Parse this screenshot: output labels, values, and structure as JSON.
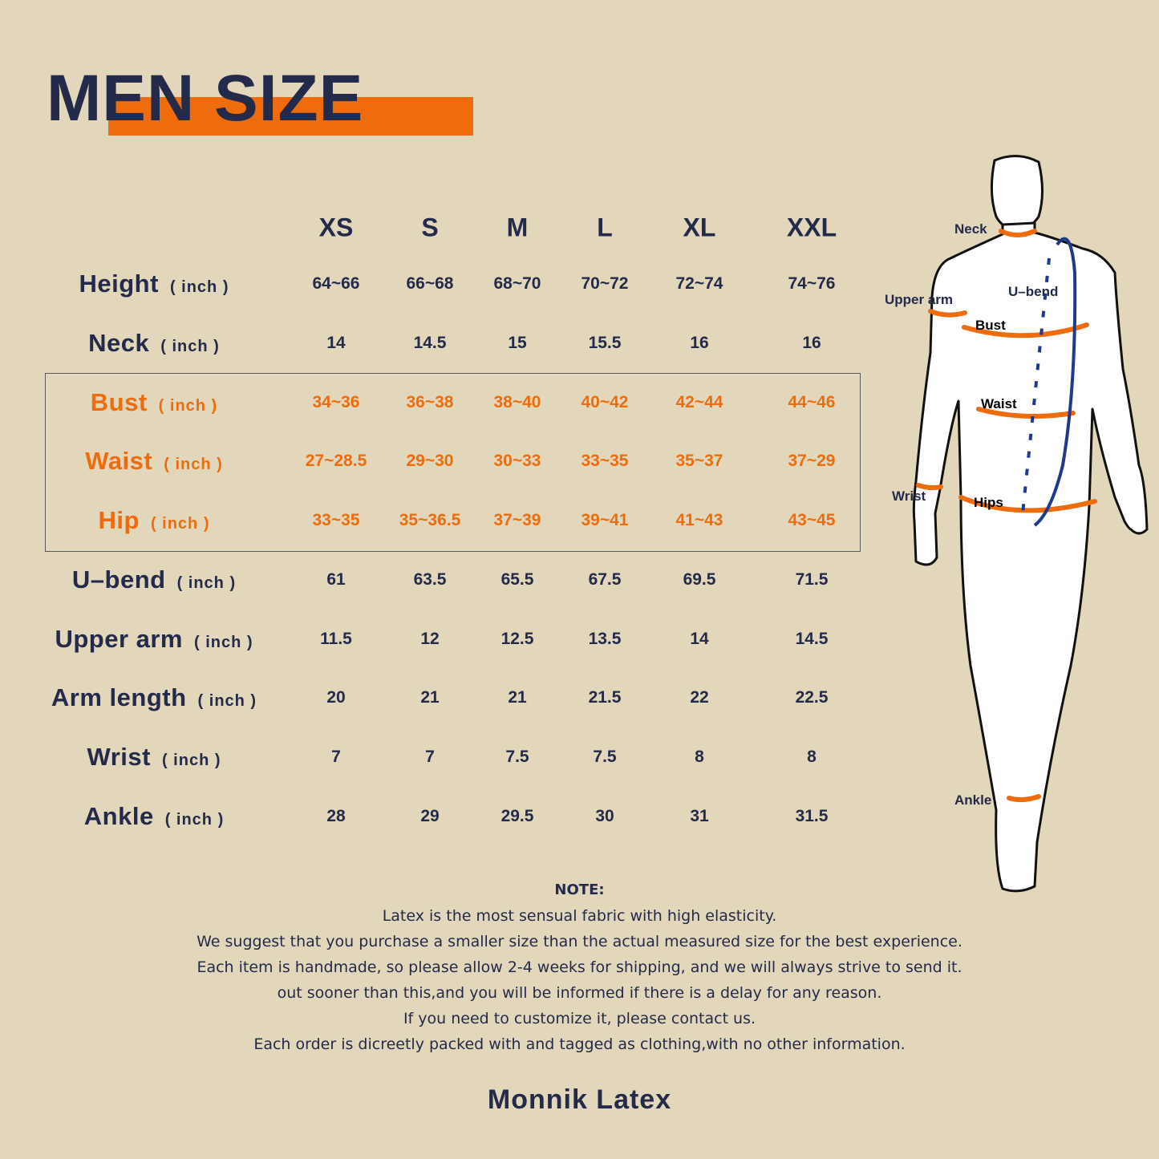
{
  "title": "MEN SIZE",
  "colors": {
    "background": "#e2d6bb",
    "navy": "#232a4a",
    "orange": "#ee6c0b",
    "ubend_blue": "#1f3a8a"
  },
  "table": {
    "sizes": [
      "XS",
      "S",
      "M",
      "L",
      "XL",
      "XXL"
    ],
    "unit": "( inch )",
    "rows": [
      {
        "label": "Height",
        "highlight": false,
        "values": [
          "64~66",
          "66~68",
          "68~70",
          "70~72",
          "72~74",
          "74~76"
        ]
      },
      {
        "label": "Neck",
        "highlight": false,
        "values": [
          "14",
          "14.5",
          "15",
          "15.5",
          "16",
          "16"
        ]
      },
      {
        "label": "Bust",
        "highlight": true,
        "values": [
          "34~36",
          "36~38",
          "38~40",
          "40~42",
          "42~44",
          "44~46"
        ]
      },
      {
        "label": "Waist",
        "highlight": true,
        "values": [
          "27~28.5",
          "29~30",
          "30~33",
          "33~35",
          "35~37",
          "37~29"
        ]
      },
      {
        "label": "Hip",
        "highlight": true,
        "values": [
          "33~35",
          "35~36.5",
          "37~39",
          "39~41",
          "41~43",
          "43~45"
        ]
      },
      {
        "label": "U–bend",
        "highlight": false,
        "values": [
          "61",
          "63.5",
          "65.5",
          "67.5",
          "69.5",
          "71.5"
        ]
      },
      {
        "label": "Upper arm",
        "highlight": false,
        "values": [
          "11.5",
          "12",
          "12.5",
          "13.5",
          "14",
          "14.5"
        ]
      },
      {
        "label": "Arm length",
        "highlight": false,
        "values": [
          "20",
          "21",
          "21",
          "21.5",
          "22",
          "22.5"
        ]
      },
      {
        "label": "Wrist",
        "highlight": false,
        "values": [
          "7",
          "7",
          "7.5",
          "7.5",
          "8",
          "8"
        ]
      },
      {
        "label": "Ankle",
        "highlight": false,
        "values": [
          "28",
          "29",
          "29.5",
          "30",
          "31",
          "31.5"
        ]
      }
    ]
  },
  "figure": {
    "labels": {
      "neck": "Neck",
      "upper_arm": "Upper arm",
      "u_bend": "U–bend",
      "bust": "Bust",
      "waist": "Waist",
      "wrist": "Wrist",
      "hips": "Hips",
      "ankle": "Ankle"
    }
  },
  "note": {
    "title": "NOTE:",
    "lines": [
      "Latex is the most sensual fabric with high elasticity.",
      "We suggest that you purchase a smaller size than the actual measured size for the best experience.",
      "Each item is handmade, so please allow 2-4 weeks for shipping, and we will always strive to send it.",
      "out sooner than this,and you will be informed if there is a delay for any reason.",
      "If you need to customize it, please contact us.",
      "Each order is dicreetly packed with and tagged as clothing,with no other information."
    ]
  },
  "brand": "Monnik Latex"
}
